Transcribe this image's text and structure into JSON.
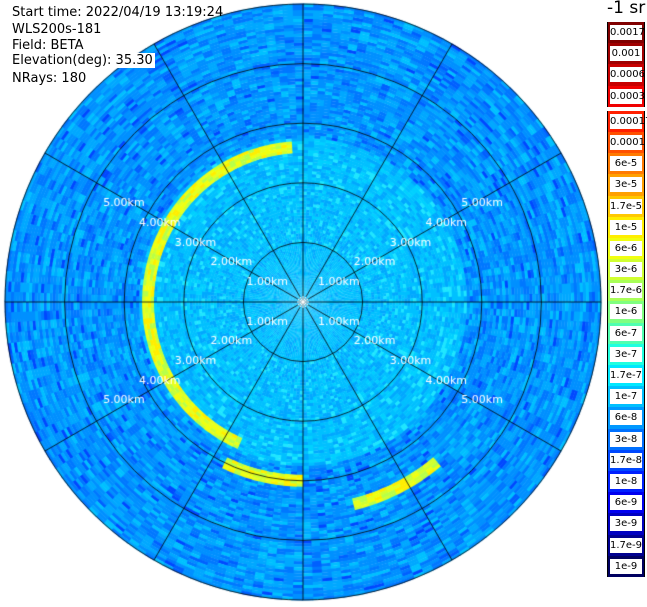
{
  "header": {
    "start_time": "Start time: 2022/04/19 13:19:24",
    "device": "WLS200s-181",
    "field": "Field: BETA",
    "elevation": "Elevation(deg): 35.30",
    "nrays": "NRays: 180"
  },
  "colorbar": {
    "unit": "-1 sr",
    "group_top": [
      {
        "label": "0.0017",
        "color": "#800000"
      },
      {
        "label": "0.001",
        "color": "#a00000"
      },
      {
        "label": "0.0006",
        "color": "#c80000"
      },
      {
        "label": "0.0003",
        "color": "#f00000"
      }
    ],
    "group_bottom": [
      {
        "label": "0.00017",
        "color": "#ff2000"
      },
      {
        "label": "0.0001",
        "color": "#ff5000"
      },
      {
        "label": "6e-5",
        "color": "#ff7a00"
      },
      {
        "label": "3e-5",
        "color": "#ffa000"
      },
      {
        "label": "1.7e-5",
        "color": "#ffc800"
      },
      {
        "label": "1e-5",
        "color": "#ffee00"
      },
      {
        "label": "6e-6",
        "color": "#f0ff10"
      },
      {
        "label": "3e-6",
        "color": "#d0ff30"
      },
      {
        "label": "1.7e-6",
        "color": "#a8ff58"
      },
      {
        "label": "1e-6",
        "color": "#80ff80"
      },
      {
        "label": "6e-7",
        "color": "#50ffb0"
      },
      {
        "label": "3e-7",
        "color": "#20ffe0"
      },
      {
        "label": "1.7e-7",
        "color": "#00e8ff"
      },
      {
        "label": "1e-7",
        "color": "#00c0ff"
      },
      {
        "label": "6e-8",
        "color": "#0098ff"
      },
      {
        "label": "3e-8",
        "color": "#0070ff"
      },
      {
        "label": "1.7e-8",
        "color": "#0048ff"
      },
      {
        "label": "1e-8",
        "color": "#0020ff"
      },
      {
        "label": "6e-9",
        "color": "#0000f0"
      },
      {
        "label": "3e-9",
        "color": "#0000c0"
      },
      {
        "label": "1.7e-9",
        "color": "#000090"
      },
      {
        "label": "1e-9",
        "color": "#000060"
      }
    ]
  },
  "chart_data": {
    "type": "heatmap",
    "projection": "polar (PPI scan)",
    "rings_km": [
      1,
      2,
      3,
      4,
      5
    ],
    "ring_labels": [
      "1.00km",
      "2.00km",
      "3.00km",
      "4.00km",
      "5.00km"
    ],
    "max_range_km": 5.0,
    "radial_line_angles_deg": [
      0,
      30,
      60,
      90,
      120,
      150,
      180,
      210,
      240,
      270,
      300,
      330
    ],
    "grid": true,
    "background_value": "1e-8 to 1e-7",
    "features": [
      {
        "name": "arc",
        "range_km": 2.6,
        "azimuth_deg": [
          205,
          355
        ],
        "value": "1e-6 to 1e-5"
      },
      {
        "name": "arc",
        "range_km": 3.0,
        "azimuth_deg": [
          180,
          205
        ],
        "value": "1e-6 to 3e-6"
      },
      {
        "name": "arc",
        "range_km": 3.5,
        "azimuth_deg": [
          140,
          165
        ],
        "value": "3e-6 to 1e-5"
      }
    ]
  }
}
